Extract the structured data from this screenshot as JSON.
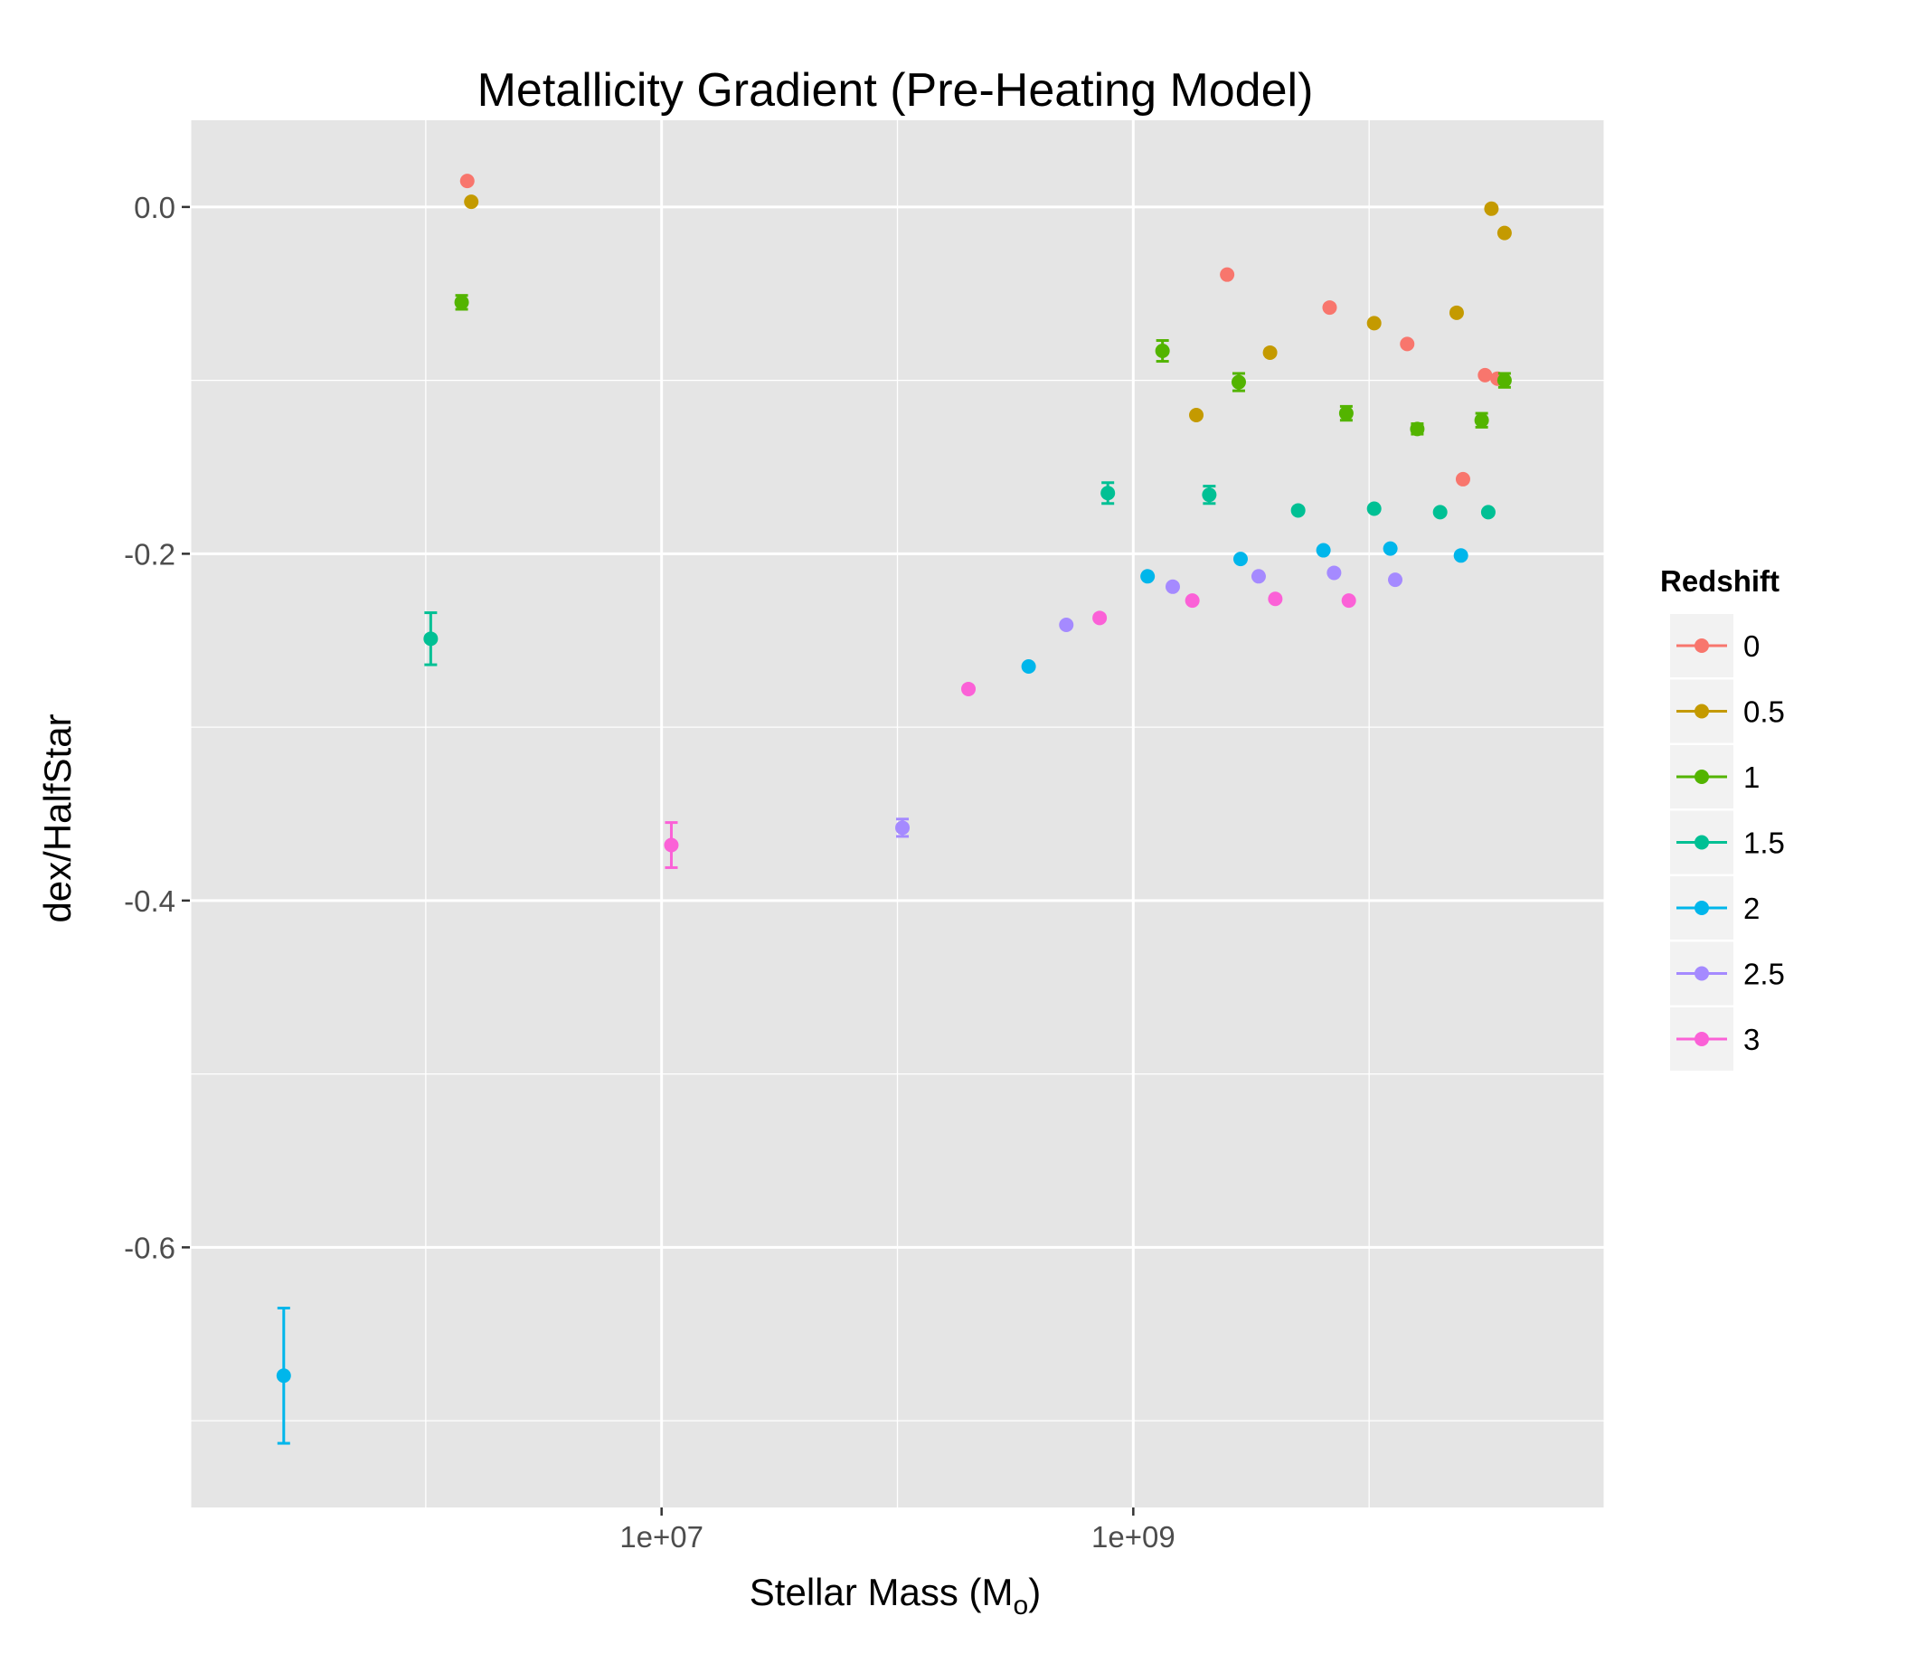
{
  "chart_data": {
    "type": "scatter",
    "title": "Metallicity Gradient (Pre-Heating Model)",
    "xlabel": "Stellar Mass (M",
    "xlabel_subscript": "o",
    "xlabel_close": ")",
    "ylabel": "dex/HalfStar",
    "x_scale": "log10",
    "xlim": [
      100000,
      100000000000
    ],
    "ylim": [
      -0.75,
      0.05
    ],
    "x_ticks": [
      {
        "value": 10000000,
        "label": "1e+07"
      },
      {
        "value": 1000000000,
        "label": "1e+09"
      }
    ],
    "y_ticks": [
      {
        "value": 0.0,
        "label": "0.0"
      },
      {
        "value": -0.2,
        "label": "-0.2"
      },
      {
        "value": -0.4,
        "label": "-0.4"
      },
      {
        "value": -0.6,
        "label": "-0.6"
      }
    ],
    "grid": true,
    "legend": {
      "title": "Redshift",
      "placement": "right"
    },
    "series": [
      {
        "name": "0",
        "color": "#F8766D",
        "points": [
          {
            "x": 1500000,
            "y": 0.015
          },
          {
            "x": 2500000000,
            "y": -0.039
          },
          {
            "x": 6800000000,
            "y": -0.058
          },
          {
            "x": 14500000000,
            "y": -0.079
          },
          {
            "x": 25000000000,
            "y": -0.157
          },
          {
            "x": 31000000000,
            "y": -0.097
          },
          {
            "x": 35000000000,
            "y": -0.099
          }
        ]
      },
      {
        "name": "0.5",
        "color": "#C49A00",
        "points": [
          {
            "x": 1560000,
            "y": 0.003
          },
          {
            "x": 1850000000,
            "y": -0.12
          },
          {
            "x": 3800000000,
            "y": -0.084
          },
          {
            "x": 10500000000,
            "y": -0.067
          },
          {
            "x": 23500000000,
            "y": -0.061
          },
          {
            "x": 33000000000,
            "y": -0.001
          },
          {
            "x": 37500000000,
            "y": -0.015
          }
        ]
      },
      {
        "name": "1",
        "color": "#53B400",
        "points": [
          {
            "x": 1420000,
            "y": -0.055,
            "err": 0.004
          },
          {
            "x": 1330000000,
            "y": -0.083,
            "err": 0.006
          },
          {
            "x": 2800000000,
            "y": -0.101,
            "err": 0.005
          },
          {
            "x": 8000000000,
            "y": -0.119,
            "err": 0.004
          },
          {
            "x": 16000000000,
            "y": -0.128,
            "err": 0.003
          },
          {
            "x": 30000000000,
            "y": -0.123,
            "err": 0.004
          },
          {
            "x": 37500000000,
            "y": -0.1,
            "err": 0.004
          }
        ]
      },
      {
        "name": "1.5",
        "color": "#00C094",
        "points": [
          {
            "x": 1050000,
            "y": -0.249,
            "err": 0.015
          },
          {
            "x": 780000000,
            "y": -0.165,
            "err": 0.006
          },
          {
            "x": 2100000000,
            "y": -0.166,
            "err": 0.005
          },
          {
            "x": 5000000000,
            "y": -0.175
          },
          {
            "x": 10500000000,
            "y": -0.174
          },
          {
            "x": 20000000000,
            "y": -0.176
          },
          {
            "x": 32000000000,
            "y": -0.176
          }
        ]
      },
      {
        "name": "2",
        "color": "#00B6EB",
        "points": [
          {
            "x": 250000,
            "y": -0.674,
            "err": 0.039
          },
          {
            "x": 360000000,
            "y": -0.265
          },
          {
            "x": 1150000000,
            "y": -0.213
          },
          {
            "x": 2850000000,
            "y": -0.203
          },
          {
            "x": 6400000000,
            "y": -0.198
          },
          {
            "x": 12300000000,
            "y": -0.197
          },
          {
            "x": 24500000000,
            "y": -0.201
          }
        ]
      },
      {
        "name": "2.5",
        "color": "#A58AFF",
        "points": [
          {
            "x": 105000000,
            "y": -0.358,
            "err": 0.005
          },
          {
            "x": 520000000,
            "y": -0.241
          },
          {
            "x": 1470000000,
            "y": -0.219
          },
          {
            "x": 3400000000,
            "y": -0.213
          },
          {
            "x": 7100000000,
            "y": -0.211
          },
          {
            "x": 12900000000,
            "y": -0.215
          }
        ]
      },
      {
        "name": "3",
        "color": "#FB61D7",
        "points": [
          {
            "x": 11000000,
            "y": -0.368,
            "err": 0.013
          },
          {
            "x": 200000000,
            "y": -0.278
          },
          {
            "x": 720000000,
            "y": -0.237
          },
          {
            "x": 1780000000,
            "y": -0.227
          },
          {
            "x": 4000000000,
            "y": -0.226
          },
          {
            "x": 8200000000,
            "y": -0.227
          }
        ]
      }
    ]
  }
}
